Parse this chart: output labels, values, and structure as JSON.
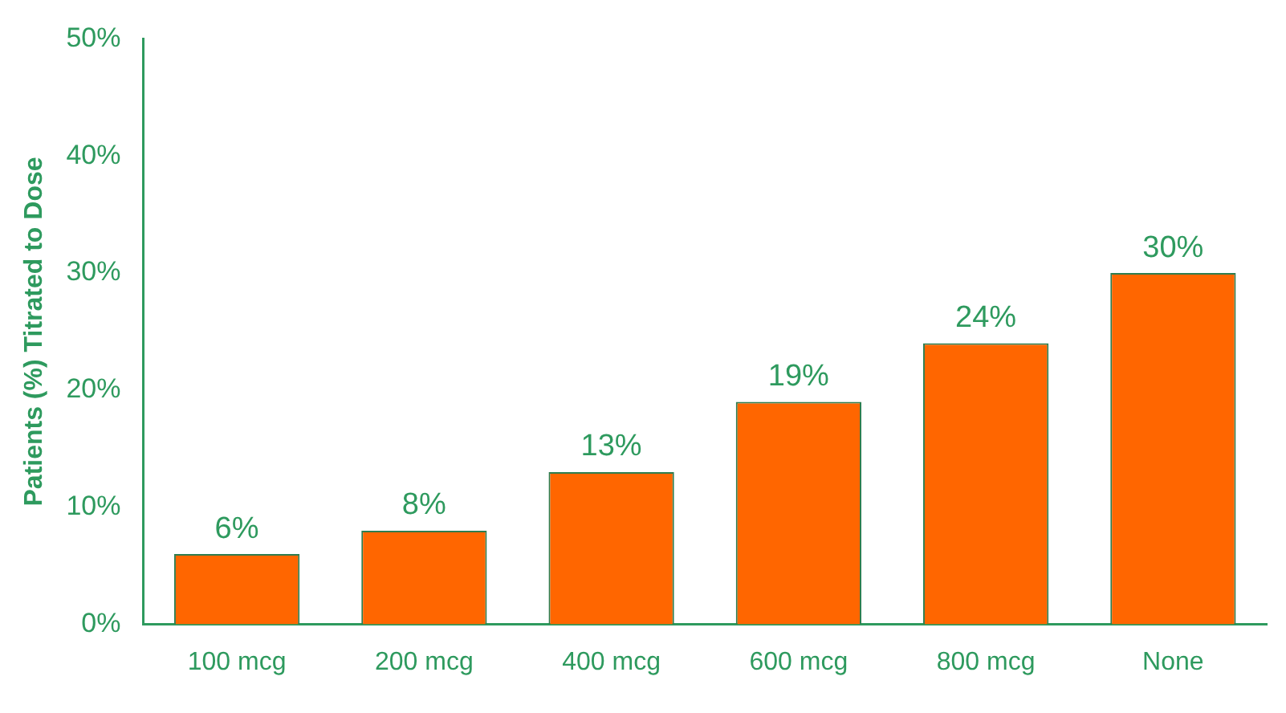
{
  "chart_data": {
    "type": "bar",
    "ylabel": "Patients (%) Titrated to Dose",
    "categories": [
      "100 mcg",
      "200 mcg",
      "400 mcg",
      "600 mcg",
      "800 mcg",
      "None"
    ],
    "values": [
      6,
      8,
      13,
      19,
      24,
      30
    ],
    "color": "#ff6600",
    "value_labels": [
      "6%",
      "8%",
      "13%",
      "19%",
      "24%",
      "30%"
    ],
    "ylim": [
      0,
      50
    ],
    "yticks": [
      {
        "value": 0,
        "label": "0%"
      },
      {
        "value": 10,
        "label": "10%"
      },
      {
        "value": 20,
        "label": "20%"
      },
      {
        "value": 30,
        "label": "30%"
      },
      {
        "value": 40,
        "label": "40%"
      },
      {
        "value": 50,
        "label": "50%"
      }
    ],
    "grid": false,
    "legend": false
  }
}
